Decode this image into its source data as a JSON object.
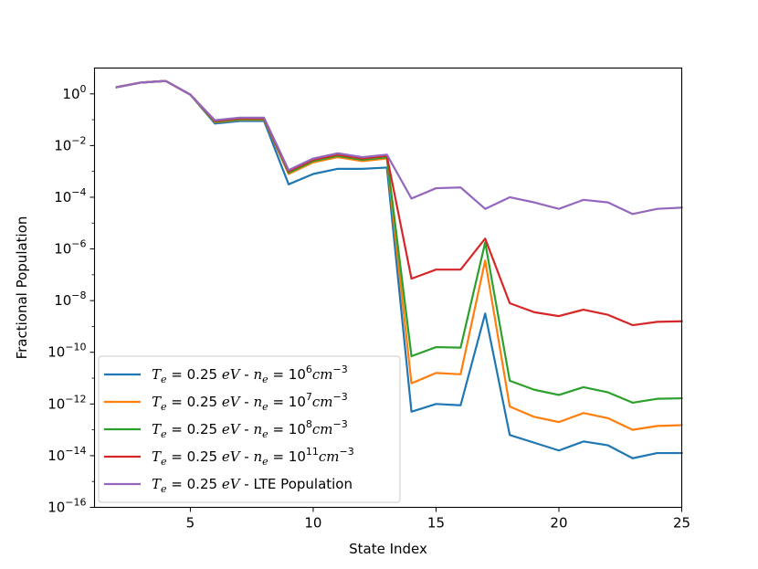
{
  "chart_data": {
    "type": "line",
    "title": "",
    "xlabel": "State Index",
    "ylabel": "Fractional Population",
    "yscale": "log",
    "xlim": [
      1.1,
      25
    ],
    "ylim_log10": [
      -16,
      1
    ],
    "xticks": [
      5,
      10,
      15,
      20,
      25
    ],
    "yticks_log10": [
      0,
      -2,
      -4,
      -6,
      -8,
      -10,
      -12,
      -14,
      -16
    ],
    "ytick_labels": [
      {
        "base": "10",
        "exp": "0"
      },
      {
        "base": "10",
        "exp": "−2"
      },
      {
        "base": "10",
        "exp": "−4"
      },
      {
        "base": "10",
        "exp": "−6"
      },
      {
        "base": "10",
        "exp": "−8"
      },
      {
        "base": "10",
        "exp": "−10"
      },
      {
        "base": "10",
        "exp": "−12"
      },
      {
        "base": "10",
        "exp": "−14"
      },
      {
        "base": "10",
        "exp": "−16"
      }
    ],
    "legend_position": "lower-left",
    "x": [
      2,
      3,
      4,
      5,
      6,
      7,
      8,
      9,
      10,
      11,
      12,
      13,
      14,
      15,
      16,
      17,
      18,
      19,
      20,
      21,
      22,
      23,
      24,
      25
    ],
    "series": [
      {
        "name": "T_e = 0.25 eV - n_e = 10^6 cm^-3",
        "color": "#1f77b4",
        "log10_values": [
          0.26,
          0.44,
          0.5,
          -0.03,
          -1.15,
          -1.05,
          -1.05,
          -3.5,
          -3.1,
          -2.9,
          -2.9,
          -2.85,
          -12.3,
          -12.0,
          -12.05,
          -8.5,
          -13.2,
          -13.5,
          -13.8,
          -13.45,
          -13.6,
          -14.1,
          -13.9,
          -13.9
        ],
        "legend": {
          "sup": "6"
        }
      },
      {
        "name": "T_e = 0.25 eV - n_e = 10^7 cm^-3",
        "color": "#ff7f0e",
        "log10_values": [
          0.26,
          0.44,
          0.5,
          -0.03,
          -1.1,
          -1.0,
          -1.0,
          -3.1,
          -2.65,
          -2.45,
          -2.6,
          -2.5,
          -11.2,
          -10.8,
          -10.85,
          -6.45,
          -12.1,
          -12.5,
          -12.7,
          -12.35,
          -12.55,
          -13.0,
          -12.85,
          -12.82
        ],
        "legend": {
          "sup": "7"
        }
      },
      {
        "name": "T_e = 0.25 eV - n_e = 10^8 cm^-3",
        "color": "#2ca02c",
        "log10_values": [
          0.26,
          0.44,
          0.5,
          -0.03,
          -1.08,
          -0.98,
          -0.98,
          -3.05,
          -2.6,
          -2.4,
          -2.55,
          -2.45,
          -10.15,
          -9.8,
          -9.82,
          -5.75,
          -11.1,
          -11.45,
          -11.65,
          -11.35,
          -11.55,
          -11.95,
          -11.8,
          -11.78
        ],
        "legend": {
          "sup": "8"
        }
      },
      {
        "name": "T_e = 0.25 eV - n_e = 10^11 cm^-3",
        "color": "#d62728",
        "log10_values": [
          0.26,
          0.44,
          0.5,
          -0.03,
          -1.05,
          -0.95,
          -0.95,
          -3.0,
          -2.55,
          -2.35,
          -2.5,
          -2.4,
          -7.15,
          -6.8,
          -6.8,
          -5.6,
          -8.1,
          -8.45,
          -8.6,
          -8.35,
          -8.55,
          -8.95,
          -8.82,
          -8.8
        ],
        "legend": {
          "sup": "11"
        }
      },
      {
        "name": "T_e = 0.25 eV - LTE Population",
        "color": "#9467bd",
        "log10_values": [
          0.26,
          0.44,
          0.5,
          -0.03,
          -1.02,
          -0.92,
          -0.92,
          -2.95,
          -2.5,
          -2.3,
          -2.45,
          -2.35,
          -4.05,
          -3.65,
          -3.62,
          -4.45,
          -4.0,
          -4.2,
          -4.45,
          -4.1,
          -4.2,
          -4.65,
          -4.45,
          -4.4
        ],
        "legend": {
          "sup": ""
        }
      }
    ]
  },
  "legend_parts": {
    "temp_symbol": "T",
    "temp_sub": "e",
    "temp_value": " = 0.25 ",
    "temp_unit": "eV",
    "dash": " - ",
    "dens_symbol": "n",
    "dens_sub": "e",
    "dens_eq": " = 10",
    "dens_unit_cm": "cm",
    "dens_unit_exp": "−3",
    "lte_label": " - LTE Population"
  }
}
